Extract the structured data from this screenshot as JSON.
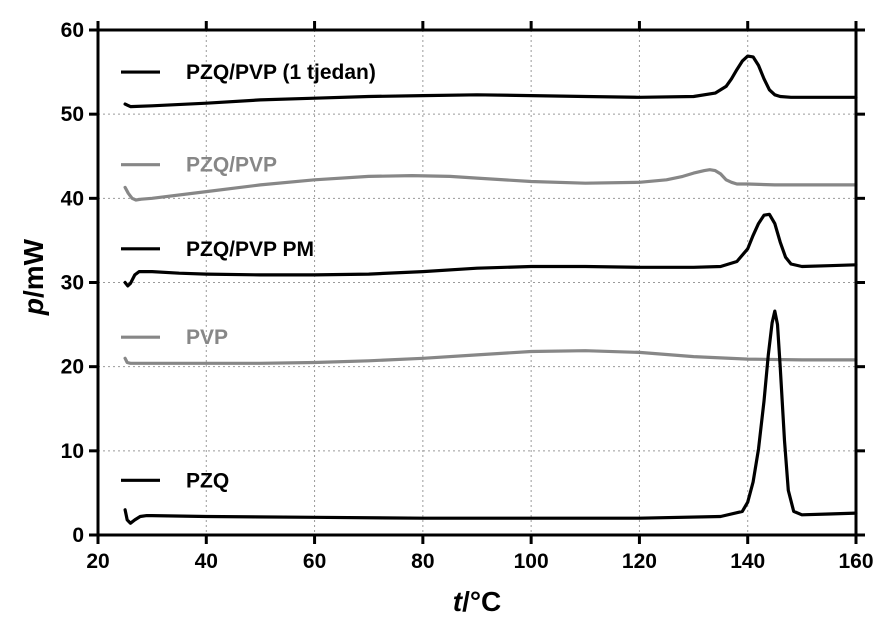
{
  "chart_data": {
    "type": "line",
    "xlabel": {
      "var": "t",
      "unit": "/°C"
    },
    "ylabel": {
      "var": "p",
      "unit": "/mW"
    },
    "xlim": [
      20,
      160
    ],
    "ylim": [
      0,
      60
    ],
    "xticks": [
      "20",
      "40",
      "60",
      "80",
      "100",
      "120",
      "140",
      "160"
    ],
    "yticks": [
      "0",
      "10",
      "20",
      "30",
      "40",
      "50",
      "60"
    ],
    "grid": true,
    "legend": "inline-left",
    "series": [
      {
        "name": "PZQ/PVP (1 tjedan)",
        "color": "#000000",
        "label_y": 55,
        "x": [
          25,
          26,
          30,
          40,
          50,
          60,
          70,
          80,
          90,
          100,
          110,
          120,
          130,
          134,
          136,
          137,
          138,
          139,
          140,
          141,
          142,
          143,
          144,
          145,
          146,
          148,
          150,
          155,
          160
        ],
        "y": [
          51.2,
          50.9,
          51.0,
          51.3,
          51.7,
          51.9,
          52.1,
          52.2,
          52.3,
          52.2,
          52.1,
          52.0,
          52.1,
          52.5,
          53.3,
          54.2,
          55.3,
          56.3,
          56.9,
          56.8,
          55.8,
          54.2,
          52.9,
          52.3,
          52.1,
          52.0,
          52.0,
          52.0,
          52.0
        ]
      },
      {
        "name": "PZQ/PVP",
        "color": "#878787",
        "label_y": 44,
        "x": [
          25,
          25.6,
          26.3,
          27,
          28,
          30,
          40,
          50,
          60,
          70,
          78,
          85,
          90,
          100,
          110,
          120,
          125,
          128,
          130,
          132,
          133,
          134,
          135,
          136,
          137,
          138,
          140,
          145,
          150,
          160
        ],
        "y": [
          41.3,
          40.6,
          40.0,
          39.8,
          39.9,
          40.0,
          40.8,
          41.6,
          42.2,
          42.6,
          42.7,
          42.6,
          42.4,
          42.0,
          41.8,
          41.9,
          42.2,
          42.6,
          43.0,
          43.3,
          43.4,
          43.3,
          42.9,
          42.2,
          41.9,
          41.7,
          41.7,
          41.6,
          41.6,
          41.6
        ]
      },
      {
        "name": "PZQ/PVP PM",
        "color": "#000000",
        "label_y": 34,
        "x": [
          25,
          25.5,
          26,
          26.8,
          27.6,
          28.5,
          30,
          35,
          40,
          50,
          60,
          70,
          80,
          90,
          100,
          110,
          120,
          130,
          135,
          138,
          140,
          141,
          142,
          143,
          144,
          145,
          146,
          147,
          148,
          150,
          155,
          160
        ],
        "y": [
          30.0,
          29.6,
          29.9,
          30.9,
          31.3,
          31.3,
          31.3,
          31.1,
          31.0,
          30.9,
          30.9,
          31.0,
          31.3,
          31.7,
          31.9,
          31.9,
          31.8,
          31.8,
          31.9,
          32.5,
          34.0,
          35.6,
          37.0,
          38.0,
          38.1,
          37.0,
          34.8,
          33.0,
          32.2,
          31.9,
          32.0,
          32.1
        ]
      },
      {
        "name": "PVP",
        "color": "#878787",
        "label_y": 23.5,
        "x": [
          25,
          25.4,
          26,
          27,
          30,
          40,
          50,
          60,
          70,
          80,
          90,
          100,
          110,
          120,
          130,
          140,
          150,
          160
        ],
        "y": [
          21.0,
          20.5,
          20.4,
          20.4,
          20.4,
          20.4,
          20.4,
          20.5,
          20.7,
          21.0,
          21.4,
          21.8,
          21.9,
          21.7,
          21.2,
          20.9,
          20.8,
          20.8
        ]
      },
      {
        "name": "PZQ",
        "color": "#000000",
        "label_y": 6.5,
        "x": [
          25,
          25.4,
          26,
          26.8,
          27.8,
          29,
          30,
          40,
          60,
          80,
          100,
          120,
          135,
          139,
          140,
          141,
          142,
          143,
          143.8,
          144.5,
          145,
          145.5,
          146,
          146.8,
          147.5,
          148.5,
          150,
          155,
          160
        ],
        "y": [
          3.0,
          1.8,
          1.4,
          1.8,
          2.2,
          2.3,
          2.3,
          2.2,
          2.1,
          2.0,
          2.0,
          2.0,
          2.2,
          2.8,
          3.9,
          6.3,
          10.2,
          15.9,
          21.4,
          25.2,
          26.6,
          25.0,
          20.0,
          11.2,
          5.3,
          2.8,
          2.4,
          2.5,
          2.6
        ]
      }
    ]
  }
}
